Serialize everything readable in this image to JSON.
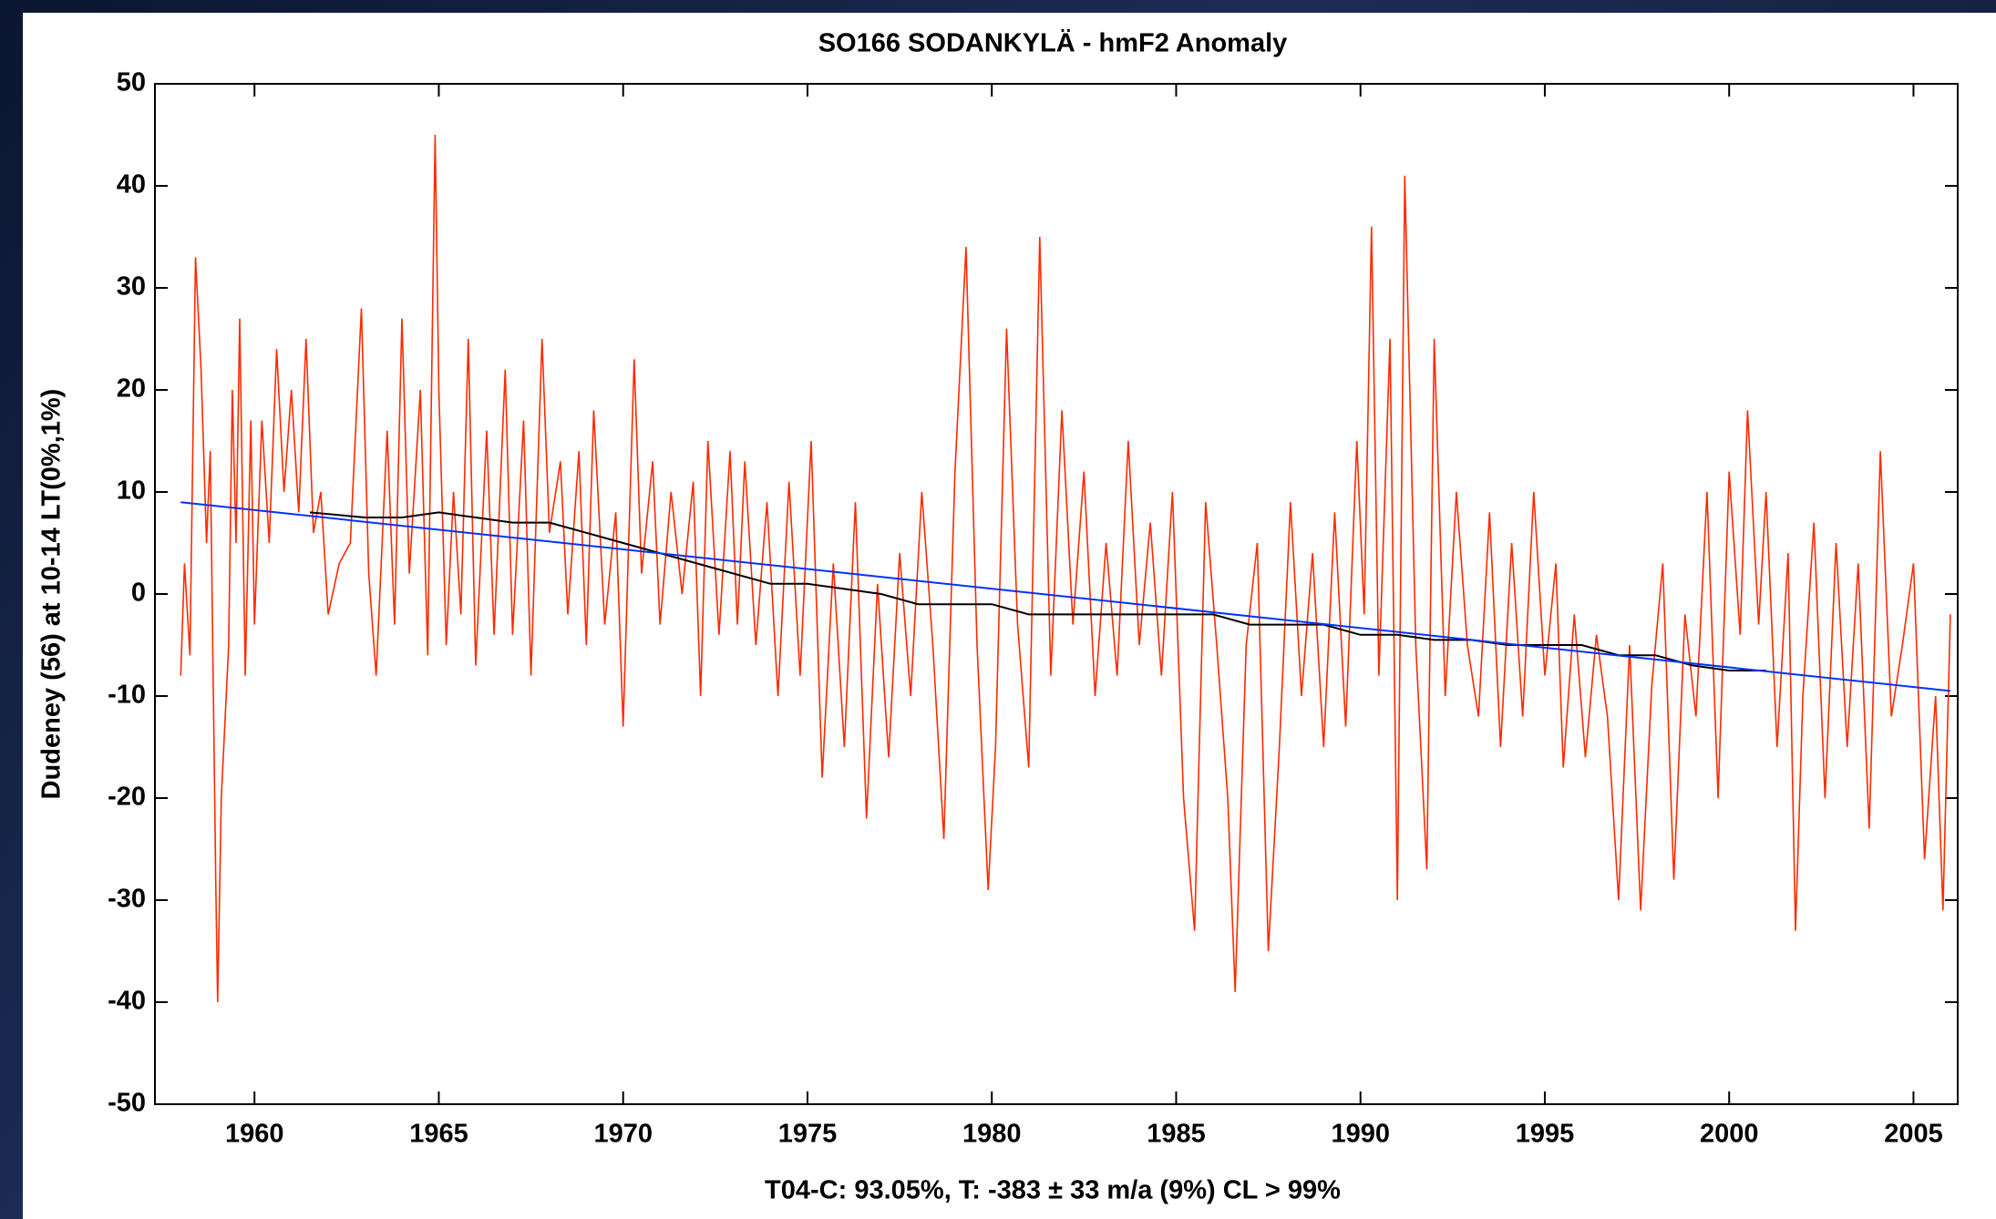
{
  "chart_data": {
    "type": "line",
    "title": "SO166 SODANKYLÄ - hmF2 Anomaly",
    "y_label": "Dudeney (56) at 10-14 LT(0%,1%)",
    "x_label": "T04-C: 93.05%, T: -383  ± 33 m/a (9%) CL > 99%",
    "xlim": [
      1957.3,
      2006.2
    ],
    "xticks": [
      1960,
      1965,
      1970,
      1975,
      1980,
      1985,
      1990,
      1995,
      2000,
      2005
    ],
    "ylim": [
      -50,
      50
    ],
    "yticks": [
      -50,
      -40,
      -30,
      -20,
      -10,
      0,
      10,
      20,
      30,
      40,
      50
    ],
    "grid": false,
    "series": [
      {
        "color": "#ff2a00",
        "x": [
          1958.0,
          1958.1,
          1958.25,
          1958.4,
          1958.55,
          1958.7,
          1958.8,
          1958.95,
          1959.0,
          1959.1,
          1959.3,
          1959.4,
          1959.5,
          1959.6,
          1959.75,
          1959.9,
          1960.0,
          1960.2,
          1960.4,
          1960.6,
          1960.8,
          1961.0,
          1961.2,
          1961.4,
          1961.6,
          1961.8,
          1962.0,
          1962.3,
          1962.6,
          1962.9,
          1963.1,
          1963.3,
          1963.6,
          1963.8,
          1964.0,
          1964.2,
          1964.5,
          1964.7,
          1964.9,
          1965.0,
          1965.2,
          1965.4,
          1965.6,
          1965.8,
          1966.0,
          1966.3,
          1966.5,
          1966.8,
          1967.0,
          1967.3,
          1967.5,
          1967.8,
          1968.0,
          1968.3,
          1968.5,
          1968.8,
          1969.0,
          1969.2,
          1969.5,
          1969.8,
          1970.0,
          1970.3,
          1970.5,
          1970.8,
          1971.0,
          1971.3,
          1971.6,
          1971.9,
          1972.1,
          1972.3,
          1972.6,
          1972.9,
          1973.1,
          1973.3,
          1973.6,
          1973.9,
          1974.2,
          1974.5,
          1974.8,
          1975.1,
          1975.4,
          1975.7,
          1976.0,
          1976.3,
          1976.6,
          1976.9,
          1977.2,
          1977.5,
          1977.8,
          1978.1,
          1978.4,
          1978.7,
          1979.0,
          1979.3,
          1979.6,
          1979.9,
          1980.1,
          1980.4,
          1980.7,
          1981.0,
          1981.3,
          1981.6,
          1981.9,
          1982.2,
          1982.5,
          1982.8,
          1983.1,
          1983.4,
          1983.7,
          1984.0,
          1984.3,
          1984.6,
          1984.9,
          1985.2,
          1985.5,
          1985.8,
          1986.1,
          1986.4,
          1986.6,
          1986.9,
          1987.2,
          1987.5,
          1987.8,
          1988.1,
          1988.4,
          1988.7,
          1989.0,
          1989.3,
          1989.6,
          1989.9,
          1990.1,
          1990.3,
          1990.5,
          1990.8,
          1991.0,
          1991.2,
          1991.5,
          1991.8,
          1992.0,
          1992.3,
          1992.6,
          1992.9,
          1993.2,
          1993.5,
          1993.8,
          1994.1,
          1994.4,
          1994.7,
          1995.0,
          1995.3,
          1995.5,
          1995.8,
          1996.1,
          1996.4,
          1996.7,
          1997.0,
          1997.3,
          1997.6,
          1997.9,
          1998.2,
          1998.5,
          1998.8,
          1999.1,
          1999.4,
          1999.7,
          2000.0,
          2000.3,
          2000.5,
          2000.8,
          2001.0,
          2001.3,
          2001.6,
          2001.8,
          2002.0,
          2002.3,
          2002.6,
          2002.9,
          2003.2,
          2003.5,
          2003.8,
          2004.1,
          2004.4,
          2004.7,
          2005.0,
          2005.3,
          2005.6,
          2005.8,
          2006.0
        ],
        "values": [
          -8,
          3,
          -6,
          33,
          22,
          5,
          14,
          -28,
          -40,
          -20,
          -5,
          20,
          5,
          27,
          -8,
          17,
          -3,
          17,
          5,
          24,
          10,
          20,
          8,
          25,
          6,
          10,
          -2,
          3,
          5,
          28,
          2,
          -8,
          16,
          -3,
          27,
          2,
          20,
          -6,
          45,
          20,
          -5,
          10,
          -2,
          25,
          -7,
          16,
          -4,
          22,
          -4,
          17,
          -8,
          25,
          6,
          13,
          -2,
          14,
          -5,
          18,
          -3,
          8,
          -13,
          23,
          2,
          13,
          -3,
          10,
          0,
          11,
          -10,
          15,
          -4,
          14,
          -3,
          13,
          -5,
          9,
          -10,
          11,
          -8,
          15,
          -18,
          3,
          -15,
          9,
          -22,
          1,
          -16,
          4,
          -10,
          10,
          -5,
          -24,
          12,
          34,
          -5,
          -29,
          -15,
          26,
          -3,
          -17,
          35,
          -8,
          18,
          -3,
          12,
          -10,
          5,
          -8,
          15,
          -5,
          7,
          -8,
          10,
          -20,
          -33,
          9,
          -5,
          -20,
          -39,
          -5,
          5,
          -35,
          -15,
          9,
          -10,
          4,
          -15,
          8,
          -13,
          15,
          -2,
          36,
          -8,
          25,
          -30,
          41,
          -5,
          -27,
          25,
          -10,
          10,
          -5,
          -12,
          8,
          -15,
          5,
          -12,
          10,
          -8,
          3,
          -17,
          -2,
          -16,
          -4,
          -12,
          -30,
          -5,
          -31,
          -9,
          3,
          -28,
          -2,
          -12,
          10,
          -20,
          12,
          -4,
          18,
          -3,
          10,
          -15,
          4,
          -33,
          -10,
          7,
          -20,
          5,
          -15,
          3,
          -23,
          14,
          -12,
          -5,
          3,
          -26,
          -10,
          -31,
          -2
        ]
      },
      {
        "color": "#000000",
        "x": [
          1961.5,
          1963,
          1964,
          1965,
          1966,
          1967,
          1968,
          1969,
          1970,
          1971,
          1972,
          1973,
          1974,
          1975,
          1976,
          1977,
          1978,
          1979,
          1980,
          1981,
          1982,
          1983,
          1984,
          1985,
          1986,
          1987,
          1988,
          1989,
          1990,
          1991,
          1992,
          1993,
          1994,
          1995,
          1996,
          1997,
          1998,
          1999,
          2000,
          2001
        ],
        "values": [
          8,
          7.5,
          7.5,
          8,
          7.5,
          7,
          7,
          6,
          5,
          4,
          3,
          2,
          1,
          1,
          0.5,
          0,
          -1,
          -1,
          -1,
          -2,
          -2,
          -2,
          -2,
          -2,
          -2,
          -3,
          -3,
          -3,
          -4,
          -4,
          -4.5,
          -4.5,
          -5,
          -5,
          -5,
          -6,
          -6,
          -7,
          -7.5,
          -7.5
        ]
      },
      {
        "color": "#0033ff",
        "x": [
          1958,
          2006
        ],
        "values": [
          9,
          -9.5
        ]
      }
    ]
  }
}
